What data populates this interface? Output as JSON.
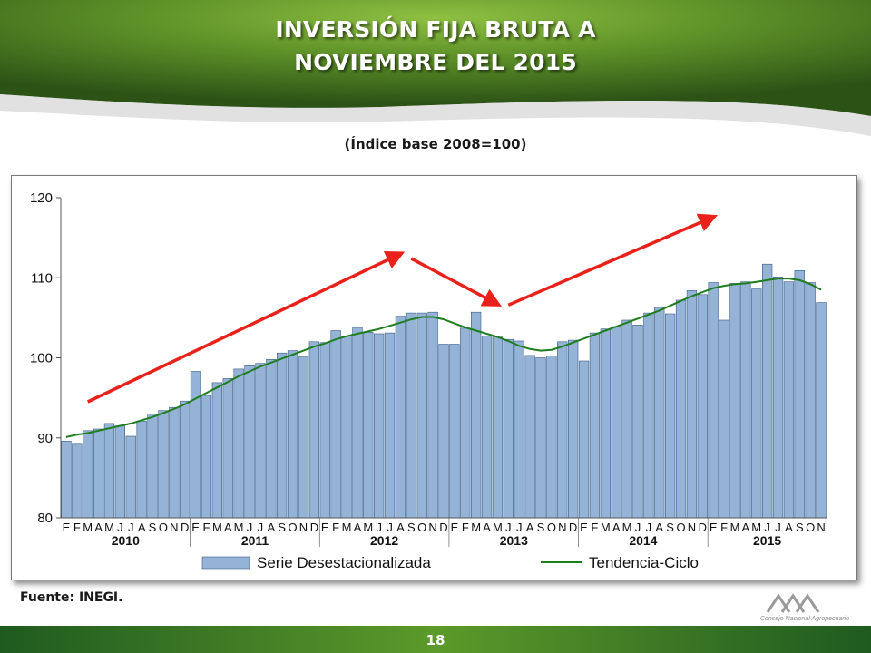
{
  "header": {
    "title_line1": "INVERSIÓN FIJA BRUTA A",
    "title_line2": "NOVIEMBRE DEL 2015",
    "subtitle": "(Índice base 2008=100)",
    "colors": {
      "dark_green": "#2f5b16",
      "light_green": "#86b83a"
    }
  },
  "footer": {
    "source": "Fuente: INEGI.",
    "page_number": "18",
    "logo_text": "Consejo Nacional Agropecuario",
    "logo_icon": "cna-logo-icon"
  },
  "chart_data": {
    "type": "bar",
    "ylim": [
      80,
      120
    ],
    "yticks": [
      80,
      90,
      100,
      110,
      120
    ],
    "grid": false,
    "legend_position": "bottom",
    "month_labels": [
      "E",
      "F",
      "M",
      "A",
      "M",
      "J",
      "J",
      "A",
      "S",
      "O",
      "N",
      "D"
    ],
    "years": [
      "2010",
      "2011",
      "2012",
      "2013",
      "2014",
      "2015"
    ],
    "series": [
      {
        "name": "Serie Desestacionalizada",
        "type": "bar",
        "color": "#95b3d7",
        "values": [
          89.6,
          89.2,
          90.9,
          91.1,
          91.8,
          91.5,
          90.2,
          92.1,
          93.0,
          93.4,
          93.8,
          94.6,
          98.3,
          95.3,
          96.9,
          97.4,
          98.6,
          99.0,
          99.3,
          99.8,
          100.6,
          100.9,
          100.1,
          102.0,
          101.9,
          103.4,
          102.7,
          103.8,
          103.2,
          103.0,
          103.1,
          105.2,
          105.6,
          105.6,
          105.7,
          101.7,
          101.7,
          103.7,
          105.7,
          102.7,
          102.6,
          102.3,
          102.1,
          100.3,
          100.0,
          100.2,
          102.0,
          102.2,
          99.6,
          103.1,
          103.6,
          103.9,
          104.7,
          104.1,
          105.6,
          106.3,
          105.5,
          107.2,
          108.4,
          107.9,
          109.4,
          104.7,
          109.3,
          109.5,
          108.6,
          111.7,
          110.1,
          109.5,
          110.9,
          109.4,
          106.9
        ]
      },
      {
        "name": "Tendencia-Ciclo",
        "type": "line",
        "color": "#1e7d1e",
        "values": [
          90.1,
          90.4,
          90.6,
          90.9,
          91.2,
          91.5,
          91.8,
          92.2,
          92.6,
          93.1,
          93.6,
          94.2,
          94.9,
          95.6,
          96.3,
          97.0,
          97.7,
          98.3,
          98.9,
          99.4,
          99.9,
          100.4,
          100.9,
          101.4,
          101.8,
          102.3,
          102.7,
          103.0,
          103.3,
          103.6,
          104.0,
          104.4,
          104.8,
          105.1,
          105.1,
          104.8,
          104.3,
          103.8,
          103.4,
          103.0,
          102.6,
          102.1,
          101.5,
          101.1,
          100.9,
          101.0,
          101.4,
          101.9,
          102.4,
          102.9,
          103.4,
          103.9,
          104.4,
          104.9,
          105.4,
          105.9,
          106.5,
          107.1,
          107.7,
          108.2,
          108.7,
          109.0,
          109.2,
          109.3,
          109.5,
          109.7,
          109.9,
          109.9,
          109.7,
          109.2,
          108.5
        ]
      }
    ],
    "annotations": [
      {
        "type": "arrow",
        "color": "#e8211a",
        "from": {
          "index": 2,
          "value": 94.5
        },
        "to": {
          "index": 31,
          "value": 113.0
        }
      },
      {
        "type": "arrow",
        "color": "#e8211a",
        "from": {
          "index": 32,
          "value": 112.4
        },
        "to": {
          "index": 40,
          "value": 106.7
        }
      },
      {
        "type": "arrow",
        "color": "#e8211a",
        "from": {
          "index": 41,
          "value": 106.6
        },
        "to": {
          "index": 60,
          "value": 117.6
        }
      }
    ]
  }
}
